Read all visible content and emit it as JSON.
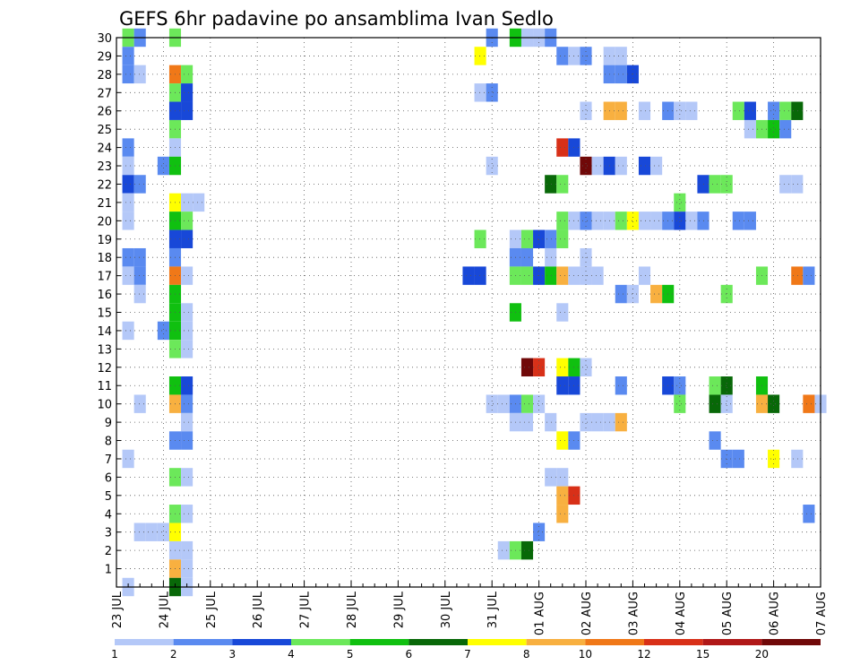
{
  "chart_data": {
    "type": "heatmap",
    "title": "GEFS 6hr padavine po ansamblima Ivan Sedlo",
    "xlabel": "",
    "ylabel": "",
    "x_tick_labels": [
      "23 JUL",
      "24 JUL",
      "25 JUL",
      "26 JUL",
      "27 JUL",
      "28 JUL",
      "29 JUL",
      "30 JUL",
      "31 JUL",
      "01 AUG",
      "02 AUG",
      "03 AUG",
      "04 AUG",
      "05 AUG",
      "06 AUG",
      "07 AUG"
    ],
    "x_tick_steps": [
      0,
      4,
      8,
      12,
      16,
      20,
      24,
      28,
      32,
      36,
      40,
      44,
      48,
      52,
      56,
      60
    ],
    "xlim_steps": [
      0,
      60
    ],
    "step_hours": 6,
    "y_tick_labels": [
      1,
      2,
      3,
      4,
      5,
      6,
      7,
      8,
      9,
      10,
      11,
      12,
      13,
      14,
      15,
      16,
      17,
      18,
      19,
      20,
      21,
      22,
      23,
      24,
      25,
      26,
      27,
      28,
      29,
      30
    ],
    "ylim": [
      0,
      30
    ],
    "grid": true,
    "colorbar": {
      "position": "bottom",
      "tick_labels": [
        "1",
        "2",
        "3",
        "4",
        "5",
        "6",
        "7",
        "8",
        "10",
        "12",
        "15",
        "20"
      ],
      "colors": [
        "#b4c8f8",
        "#5a8af0",
        "#1848d8",
        "#6ce85a",
        "#10c010",
        "#086808",
        "#ffff00",
        "#f8b040",
        "#f07818",
        "#d83018",
        "#b01818",
        "#700808"
      ]
    },
    "levels": {
      "1": "#b4c8f8",
      "2": "#5a8af0",
      "3": "#1848d8",
      "4": "#6ce85a",
      "5": "#10c010",
      "6": "#086808",
      "7": "#ffff00",
      "8": "#f8b040",
      "10": "#f07818",
      "12": "#d83018",
      "15": "#b01818",
      "20": "#700808"
    },
    "cells_note": "each cell: [time_step, member, level]",
    "cells": [
      [
        1,
        30,
        4
      ],
      [
        2,
        30,
        2
      ],
      [
        5,
        30,
        4
      ],
      [
        32,
        30,
        2
      ],
      [
        34,
        30,
        5
      ],
      [
        35,
        30,
        1
      ],
      [
        36,
        30,
        1
      ],
      [
        37,
        30,
        2
      ],
      [
        1,
        29,
        2
      ],
      [
        31,
        29,
        7
      ],
      [
        38,
        29,
        2
      ],
      [
        39,
        29,
        1
      ],
      [
        40,
        29,
        2
      ],
      [
        42,
        29,
        1
      ],
      [
        43,
        29,
        1
      ],
      [
        1,
        28,
        2
      ],
      [
        2,
        28,
        1
      ],
      [
        5,
        28,
        10
      ],
      [
        6,
        28,
        4
      ],
      [
        42,
        28,
        2
      ],
      [
        43,
        28,
        2
      ],
      [
        44,
        28,
        3
      ],
      [
        5,
        27,
        4
      ],
      [
        6,
        27,
        3
      ],
      [
        31,
        27,
        1
      ],
      [
        32,
        27,
        2
      ],
      [
        5,
        26,
        3
      ],
      [
        6,
        26,
        3
      ],
      [
        40,
        26,
        1
      ],
      [
        42,
        26,
        8
      ],
      [
        43,
        26,
        8
      ],
      [
        45,
        26,
        1
      ],
      [
        47,
        26,
        2
      ],
      [
        48,
        26,
        1
      ],
      [
        49,
        26,
        1
      ],
      [
        53,
        26,
        4
      ],
      [
        54,
        26,
        3
      ],
      [
        56,
        26,
        2
      ],
      [
        57,
        26,
        4
      ],
      [
        58,
        26,
        6
      ],
      [
        5,
        25,
        4
      ],
      [
        54,
        25,
        1
      ],
      [
        55,
        25,
        4
      ],
      [
        56,
        25,
        5
      ],
      [
        57,
        25,
        2
      ],
      [
        1,
        24,
        2
      ],
      [
        5,
        24,
        1
      ],
      [
        38,
        24,
        12
      ],
      [
        39,
        24,
        3
      ],
      [
        1,
        23,
        1
      ],
      [
        4,
        23,
        2
      ],
      [
        5,
        23,
        5
      ],
      [
        32,
        23,
        1
      ],
      [
        40,
        23,
        20
      ],
      [
        41,
        23,
        1
      ],
      [
        42,
        23,
        3
      ],
      [
        43,
        23,
        1
      ],
      [
        45,
        23,
        3
      ],
      [
        46,
        23,
        1
      ],
      [
        1,
        22,
        3
      ],
      [
        2,
        22,
        2
      ],
      [
        37,
        22,
        6
      ],
      [
        38,
        22,
        4
      ],
      [
        50,
        22,
        3
      ],
      [
        51,
        22,
        4
      ],
      [
        52,
        22,
        4
      ],
      [
        57,
        22,
        1
      ],
      [
        58,
        22,
        1
      ],
      [
        1,
        21,
        1
      ],
      [
        5,
        21,
        7
      ],
      [
        6,
        21,
        1
      ],
      [
        7,
        21,
        1
      ],
      [
        48,
        21,
        4
      ],
      [
        1,
        20,
        1
      ],
      [
        5,
        20,
        5
      ],
      [
        6,
        20,
        4
      ],
      [
        38,
        20,
        4
      ],
      [
        39,
        20,
        1
      ],
      [
        40,
        20,
        2
      ],
      [
        41,
        20,
        1
      ],
      [
        42,
        20,
        1
      ],
      [
        43,
        20,
        4
      ],
      [
        44,
        20,
        7
      ],
      [
        45,
        20,
        1
      ],
      [
        46,
        20,
        1
      ],
      [
        47,
        20,
        2
      ],
      [
        48,
        20,
        3
      ],
      [
        49,
        20,
        1
      ],
      [
        50,
        20,
        2
      ],
      [
        53,
        20,
        2
      ],
      [
        54,
        20,
        2
      ],
      [
        5,
        19,
        3
      ],
      [
        6,
        19,
        3
      ],
      [
        31,
        19,
        4
      ],
      [
        34,
        19,
        1
      ],
      [
        35,
        19,
        4
      ],
      [
        36,
        19,
        3
      ],
      [
        37,
        19,
        2
      ],
      [
        38,
        19,
        4
      ],
      [
        1,
        18,
        2
      ],
      [
        2,
        18,
        2
      ],
      [
        5,
        18,
        2
      ],
      [
        34,
        18,
        2
      ],
      [
        35,
        18,
        2
      ],
      [
        37,
        18,
        1
      ],
      [
        40,
        18,
        1
      ],
      [
        1,
        17,
        1
      ],
      [
        2,
        17,
        2
      ],
      [
        5,
        17,
        10
      ],
      [
        6,
        17,
        1
      ],
      [
        30,
        17,
        3
      ],
      [
        31,
        17,
        3
      ],
      [
        34,
        17,
        4
      ],
      [
        35,
        17,
        4
      ],
      [
        36,
        17,
        3
      ],
      [
        37,
        17,
        5
      ],
      [
        38,
        17,
        8
      ],
      [
        39,
        17,
        1
      ],
      [
        40,
        17,
        1
      ],
      [
        41,
        17,
        1
      ],
      [
        45,
        17,
        1
      ],
      [
        55,
        17,
        4
      ],
      [
        58,
        17,
        10
      ],
      [
        59,
        17,
        2
      ],
      [
        2,
        16,
        1
      ],
      [
        5,
        16,
        5
      ],
      [
        43,
        16,
        2
      ],
      [
        44,
        16,
        1
      ],
      [
        46,
        16,
        8
      ],
      [
        47,
        16,
        5
      ],
      [
        52,
        16,
        4
      ],
      [
        5,
        15,
        5
      ],
      [
        6,
        15,
        1
      ],
      [
        34,
        15,
        5
      ],
      [
        38,
        15,
        1
      ],
      [
        1,
        14,
        1
      ],
      [
        4,
        14,
        2
      ],
      [
        5,
        14,
        5
      ],
      [
        6,
        14,
        1
      ],
      [
        5,
        13,
        4
      ],
      [
        6,
        13,
        1
      ],
      [
        35,
        12,
        20
      ],
      [
        36,
        12,
        12
      ],
      [
        38,
        12,
        7
      ],
      [
        39,
        12,
        5
      ],
      [
        40,
        12,
        1
      ],
      [
        5,
        11,
        5
      ],
      [
        6,
        11,
        3
      ],
      [
        38,
        11,
        3
      ],
      [
        39,
        11,
        3
      ],
      [
        43,
        11,
        2
      ],
      [
        47,
        11,
        3
      ],
      [
        48,
        11,
        2
      ],
      [
        51,
        11,
        4
      ],
      [
        52,
        11,
        6
      ],
      [
        55,
        11,
        5
      ],
      [
        2,
        10,
        1
      ],
      [
        5,
        10,
        8
      ],
      [
        6,
        10,
        2
      ],
      [
        32,
        10,
        1
      ],
      [
        33,
        10,
        1
      ],
      [
        34,
        10,
        2
      ],
      [
        35,
        10,
        4
      ],
      [
        36,
        10,
        1
      ],
      [
        48,
        10,
        4
      ],
      [
        51,
        10,
        6
      ],
      [
        52,
        10,
        1
      ],
      [
        55,
        10,
        8
      ],
      [
        56,
        10,
        6
      ],
      [
        59,
        10,
        10
      ],
      [
        60,
        10,
        1
      ],
      [
        6,
        9,
        1
      ],
      [
        34,
        9,
        1
      ],
      [
        35,
        9,
        1
      ],
      [
        37,
        9,
        1
      ],
      [
        40,
        9,
        1
      ],
      [
        41,
        9,
        1
      ],
      [
        42,
        9,
        1
      ],
      [
        43,
        9,
        8
      ],
      [
        5,
        8,
        2
      ],
      [
        6,
        8,
        2
      ],
      [
        38,
        8,
        7
      ],
      [
        39,
        8,
        2
      ],
      [
        51,
        8,
        2
      ],
      [
        1,
        7,
        1
      ],
      [
        52,
        7,
        2
      ],
      [
        53,
        7,
        2
      ],
      [
        56,
        7,
        7
      ],
      [
        58,
        7,
        1
      ],
      [
        5,
        6,
        4
      ],
      [
        6,
        6,
        1
      ],
      [
        37,
        6,
        1
      ],
      [
        38,
        6,
        1
      ],
      [
        38,
        5,
        8
      ],
      [
        39,
        5,
        12
      ],
      [
        5,
        4,
        4
      ],
      [
        6,
        4,
        1
      ],
      [
        38,
        4,
        8
      ],
      [
        59,
        4,
        2
      ],
      [
        2,
        3,
        1
      ],
      [
        3,
        3,
        1
      ],
      [
        4,
        3,
        1
      ],
      [
        5,
        3,
        7
      ],
      [
        36,
        3,
        2
      ],
      [
        5,
        2,
        1
      ],
      [
        6,
        2,
        1
      ],
      [
        33,
        2,
        1
      ],
      [
        34,
        2,
        4
      ],
      [
        35,
        2,
        6
      ],
      [
        5,
        1,
        8
      ],
      [
        6,
        1,
        1
      ],
      [
        1,
        0,
        1
      ],
      [
        5,
        0,
        6
      ],
      [
        6,
        0,
        1
      ]
    ]
  }
}
